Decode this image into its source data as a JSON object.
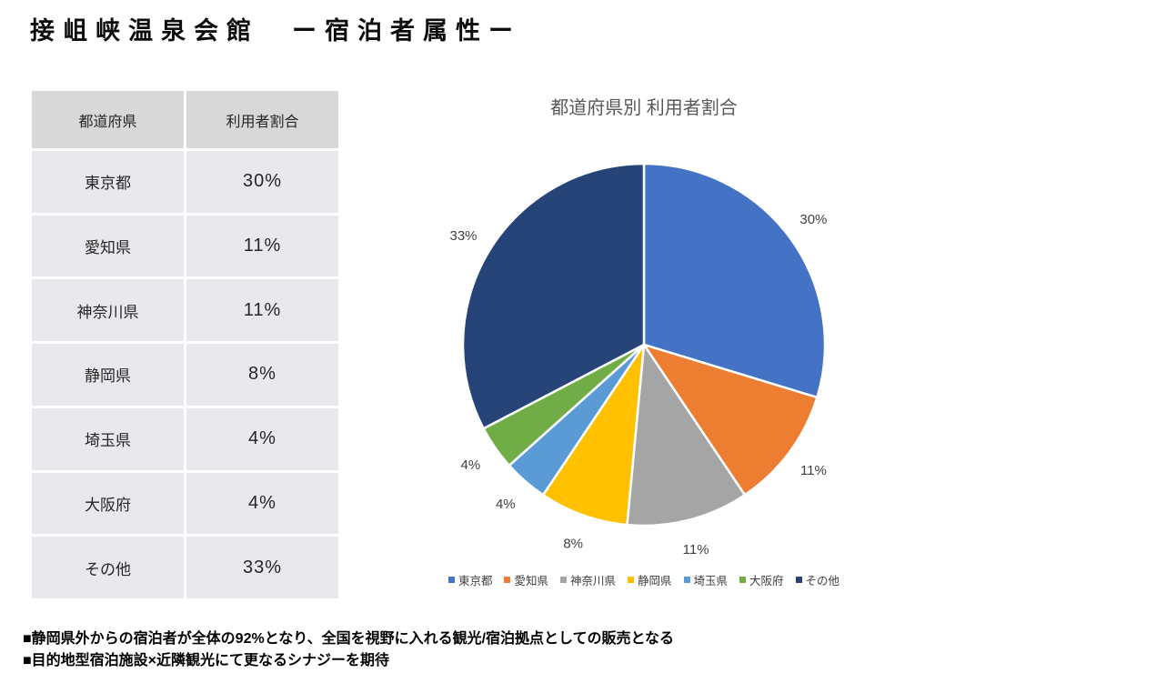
{
  "page": {
    "title": "接岨峡温泉会館　ー宿泊者属性ー",
    "background": "#ffffff"
  },
  "table": {
    "headers": [
      "都道府県",
      "利用者割合"
    ],
    "rows": [
      [
        "東京都",
        "30%"
      ],
      [
        "愛知県",
        "11%"
      ],
      [
        "神奈川県",
        "11%"
      ],
      [
        "静岡県",
        "8%"
      ],
      [
        "埼玉県",
        "4%"
      ],
      [
        "大阪府",
        "4%"
      ],
      [
        "その他",
        "33%"
      ]
    ],
    "header_bg": "#d8d8d8",
    "cell_bg": "#e9e9ed"
  },
  "chart_data": {
    "type": "pie",
    "title": "都道府県別 利用者割合",
    "categories": [
      "東京都",
      "愛知県",
      "神奈川県",
      "静岡県",
      "埼玉県",
      "大阪府",
      "その他"
    ],
    "values": [
      30,
      11,
      11,
      8,
      4,
      4,
      33
    ],
    "data_labels": [
      "30%",
      "11%",
      "11%",
      "8%",
      "4%",
      "4%",
      "33%"
    ],
    "colors": [
      "#4472c4",
      "#ed7d31",
      "#a5a5a5",
      "#ffc000",
      "#5b9bd5",
      "#70ad47",
      "#264478"
    ],
    "start_angle_deg": 0,
    "direction": "clockwise",
    "legend_position": "bottom",
    "label_position": "outside",
    "slice_border_color": "#ffffff",
    "label_color": "#404040",
    "title_color": "#595959"
  },
  "notes": {
    "line1": "■静岡県外からの宿泊者が全体の92%となり、全国を視野に入れる観光/宿泊拠点としての販売となる",
    "line2": "■目的地型宿泊施設×近隣観光にて更なるシナジーを期待"
  }
}
